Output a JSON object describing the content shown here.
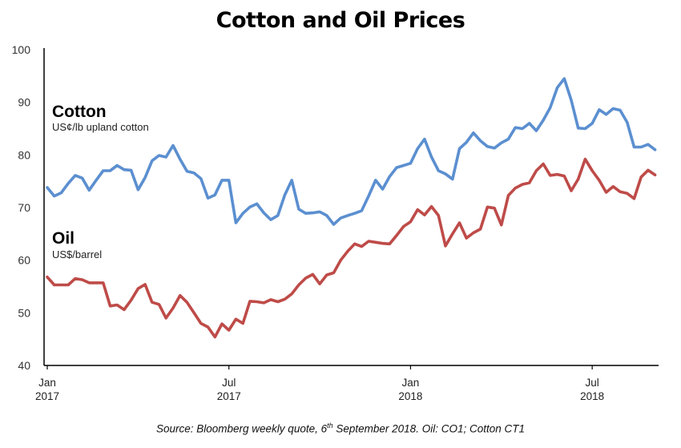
{
  "chart_data": {
    "type": "line",
    "title": "Cotton and Oil Prices",
    "ylim": [
      40,
      100
    ],
    "yticks": [
      "40",
      "50",
      "60",
      "70",
      "80",
      "90",
      "100"
    ],
    "xticks": [
      {
        "month": "Jan",
        "year": "2017",
        "week": 0
      },
      {
        "month": "Jul",
        "year": "2017",
        "week": 26
      },
      {
        "month": "Jan",
        "year": "2018",
        "week": 52
      },
      {
        "month": "Jul",
        "year": "2018",
        "week": 78
      }
    ],
    "x_start": "2017-01-06",
    "x_step": "weekly",
    "series": [
      {
        "name": "Cotton",
        "unit": "US¢/lb upland cotton",
        "color": "#5b8fd0",
        "values": [
          73.8,
          72.2,
          72.8,
          74.6,
          76.1,
          75.6,
          73.3,
          75.2,
          77.0,
          77.0,
          78.0,
          77.2,
          77.1,
          73.4,
          75.7,
          78.9,
          79.9,
          79.6,
          81.8,
          79.2,
          76.9,
          76.6,
          75.5,
          71.8,
          72.4,
          75.2,
          75.2,
          67.1,
          68.9,
          70.1,
          70.7,
          69.0,
          67.7,
          68.5,
          72.4,
          75.2,
          69.7,
          68.9,
          69.0,
          69.2,
          68.5,
          66.8,
          68.0,
          68.5,
          68.9,
          69.4,
          72.2,
          75.2,
          73.5,
          75.9,
          77.6,
          78.0,
          78.4,
          81.2,
          83.0,
          79.6,
          77.0,
          76.4,
          75.4,
          81.2,
          82.4,
          84.2,
          82.7,
          81.6,
          81.3,
          82.3,
          83.0,
          85.2,
          85.0,
          86.0,
          84.6,
          86.6,
          89.0,
          92.8,
          94.5,
          90.4,
          85.1,
          85.0,
          86.0,
          88.6,
          87.7,
          88.8,
          88.5,
          86.2,
          81.5,
          81.5,
          82.0,
          81.0
        ]
      },
      {
        "name": "Oil",
        "unit": "US$/barrel",
        "color": "#be4b48",
        "values": [
          56.8,
          55.3,
          55.3,
          55.3,
          56.5,
          56.3,
          55.7,
          55.7,
          55.7,
          51.3,
          51.5,
          50.6,
          52.4,
          54.6,
          55.4,
          52.0,
          51.6,
          49.0,
          50.9,
          53.3,
          52.0,
          50.0,
          48.0,
          47.3,
          45.4,
          47.9,
          46.7,
          48.8,
          48.0,
          52.2,
          52.1,
          51.9,
          52.5,
          52.1,
          52.6,
          53.6,
          55.3,
          56.6,
          57.3,
          55.5,
          57.2,
          57.6,
          60.0,
          61.7,
          63.1,
          62.6,
          63.6,
          63.4,
          63.2,
          63.1,
          64.7,
          66.4,
          67.3,
          69.6,
          68.6,
          70.2,
          68.5,
          62.7,
          65.0,
          67.1,
          64.2,
          65.2,
          65.9,
          70.1,
          69.9,
          66.7,
          72.3,
          73.7,
          74.4,
          74.7,
          77.0,
          78.3,
          76.1,
          76.3,
          76.0,
          73.2,
          75.4,
          79.2,
          77.0,
          75.2,
          72.9,
          74.0,
          73.0,
          72.7,
          71.7,
          75.8,
          77.1,
          76.2
        ]
      }
    ]
  },
  "labels": {
    "cotton_name": "Cotton",
    "cotton_unit": "US¢/lb upland cotton",
    "oil_name": "Oil",
    "oil_unit": "US$/barrel"
  },
  "source": {
    "prefix": "Source: Bloomberg weekly quote, 6",
    "superscript": "th",
    "suffix": " September 2018.  Oil: CO1; Cotton CT1"
  }
}
